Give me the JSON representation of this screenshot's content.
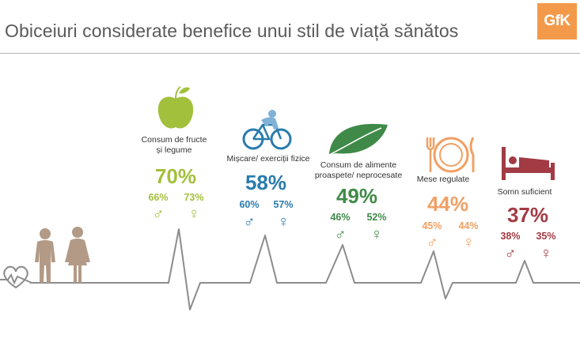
{
  "title": "Obiceiuri considerate benefice unui stil de viață sănătos",
  "logo_text": "GfK",
  "male_symbol": "♂",
  "female_symbol": "♀",
  "colors": {
    "title": "#5a5a5a",
    "logo": "#f39a4a",
    "line": "#8c8c8c",
    "people": "#b39a86"
  },
  "chart_data": {
    "type": "infographic",
    "title": "Obiceiuri considerate benefice unui stil de viață sănătos",
    "unit": "%",
    "categories": [
      {
        "label": [
          "Consum de fructe",
          "și legume"
        ],
        "total": 70,
        "male": 66,
        "female": 73,
        "color": "#a2c03c",
        "icon": "apple-icon"
      },
      {
        "label": [
          "Mișcare/ exerciții fizice"
        ],
        "total": 58,
        "male": 60,
        "female": 57,
        "color": "#2a7bac",
        "icon": "bicycle-icon"
      },
      {
        "label": [
          "Consum de alimente",
          "proaspete/ neprocesate"
        ],
        "total": 49,
        "male": 46,
        "female": 52,
        "color": "#3f8a48",
        "icon": "leaf-icon"
      },
      {
        "label": [
          "Mese regulate"
        ],
        "total": 44,
        "male": 45,
        "female": 44,
        "color": "#f0a064",
        "icon": "plate-cutlery-icon"
      },
      {
        "label": [
          "Somn suficient"
        ],
        "total": 37,
        "male": 38,
        "female": 35,
        "color": "#a23b44",
        "icon": "bed-icon"
      }
    ]
  }
}
